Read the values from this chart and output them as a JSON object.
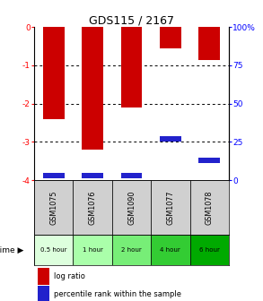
{
  "title": "GDS115 / 2167",
  "samples": [
    "GSM1075",
    "GSM1076",
    "GSM1090",
    "GSM1077",
    "GSM1078"
  ],
  "time_labels": [
    "0.5 hour",
    "1 hour",
    "2 hour",
    "4 hour",
    "6 hour"
  ],
  "log_ratios": [
    -2.4,
    -3.2,
    -2.1,
    -0.55,
    -0.85
  ],
  "percentile_ranks": [
    3,
    3,
    3,
    27,
    13
  ],
  "ylim_left": [
    -4,
    0
  ],
  "ylim_right": [
    0,
    100
  ],
  "yticks_left": [
    0,
    -1,
    -2,
    -3,
    -4
  ],
  "yticks_right": [
    0,
    25,
    50,
    75,
    100
  ],
  "bar_color": "#cc0000",
  "percentile_color": "#2222cc",
  "bar_width": 0.55,
  "legend_log_ratio": "log ratio",
  "legend_percentile": "percentile rank within the sample",
  "time_colors": [
    "#ddffdd",
    "#aaffaa",
    "#77ee77",
    "#33cc33",
    "#00aa00"
  ]
}
